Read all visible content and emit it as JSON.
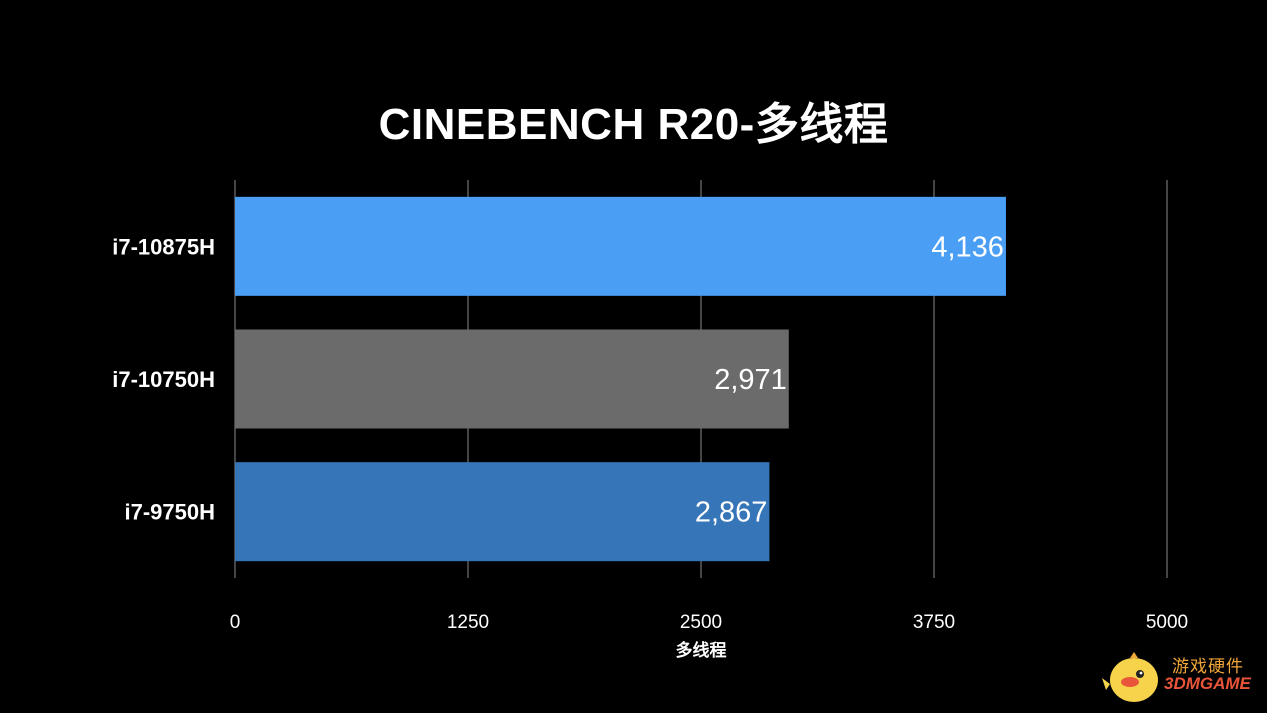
{
  "chart_data": {
    "type": "bar",
    "orientation": "horizontal",
    "title": "CINEBENCH R20-多线程",
    "xlabel": "多线程",
    "ylabel": "",
    "categories": [
      "i7-10875H",
      "i7-10750H",
      "i7-9750H"
    ],
    "values": [
      4136,
      2971,
      2867
    ],
    "value_labels": [
      "4,136",
      "2,971",
      "2,867"
    ],
    "bar_colors": [
      "#4a9ff5",
      "#6b6b6b",
      "#3575b8"
    ],
    "xlim": [
      0,
      5000
    ],
    "xticks": [
      "0",
      "1250",
      "2500",
      "3750",
      "5000"
    ],
    "grid": true,
    "legend": "none"
  },
  "watermark": {
    "cn": "游戏硬件",
    "en": "3DMGAME"
  }
}
